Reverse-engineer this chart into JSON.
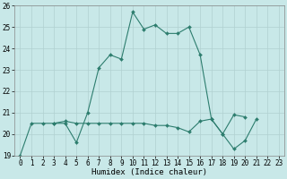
{
  "xlabel": "Humidex (Indice chaleur)",
  "x": [
    0,
    1,
    2,
    3,
    4,
    5,
    6,
    7,
    8,
    9,
    10,
    11,
    12,
    13,
    14,
    15,
    16,
    17,
    18,
    19,
    20,
    21,
    22,
    23
  ],
  "y1": [
    19.0,
    20.5,
    20.5,
    20.5,
    20.5,
    19.6,
    21.0,
    23.1,
    23.7,
    23.5,
    25.7,
    24.9,
    25.1,
    24.7,
    24.7,
    25.0,
    23.7,
    20.7,
    20.0,
    20.9,
    20.8,
    null,
    null,
    null
  ],
  "y2": [
    null,
    null,
    null,
    20.5,
    20.6,
    20.5,
    20.5,
    20.5,
    20.5,
    20.5,
    20.5,
    20.5,
    20.4,
    20.4,
    20.3,
    20.1,
    20.6,
    20.7,
    20.0,
    19.3,
    19.7,
    20.7,
    null,
    null
  ],
  "ylim": [
    19,
    26
  ],
  "xlim": [
    -0.5,
    23.5
  ],
  "yticks": [
    19,
    20,
    21,
    22,
    23,
    24,
    25,
    26
  ],
  "xticks": [
    0,
    1,
    2,
    3,
    4,
    5,
    6,
    7,
    8,
    9,
    10,
    11,
    12,
    13,
    14,
    15,
    16,
    17,
    18,
    19,
    20,
    21,
    22,
    23
  ],
  "line_color": "#2d7d6e",
  "bg_color": "#c8e8e8",
  "grid_color": "#b0d0d0",
  "markersize": 2.0,
  "tick_fontsize": 5.5,
  "xlabel_fontsize": 6.5
}
